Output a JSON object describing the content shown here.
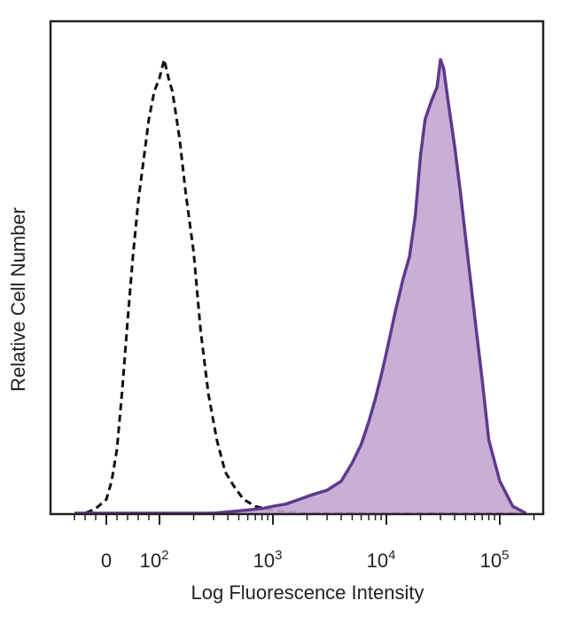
{
  "chart_data": {
    "type": "area",
    "xlabel": "Log Fluorescence Intensity",
    "ylabel": "Relative Cell Number",
    "x_scale": "biexponential",
    "xlim": [
      -80,
      200000
    ],
    "ylim": [
      0,
      1
    ],
    "grid": false,
    "legend": "none",
    "x_ticks": [
      {
        "value": 0,
        "base": "0",
        "exp": ""
      },
      {
        "value": 100,
        "base": "10",
        "exp": "2"
      },
      {
        "value": 1000,
        "base": "10",
        "exp": "3"
      },
      {
        "value": 10000,
        "base": "10",
        "exp": "4"
      },
      {
        "value": 100000,
        "base": "10",
        "exp": "5"
      }
    ],
    "series": [
      {
        "style": "dashed",
        "color": "#111111",
        "fill": "none",
        "x": [
          -60,
          -40,
          -20,
          0,
          10,
          20,
          30,
          40,
          50,
          60,
          70,
          80,
          90,
          100,
          110,
          120,
          130,
          150,
          170,
          200,
          230,
          270,
          320,
          380,
          450,
          550,
          700,
          900,
          1200,
          2000,
          5000,
          20000,
          150000
        ],
        "y": [
          0.0,
          0.0,
          0.01,
          0.03,
          0.07,
          0.14,
          0.27,
          0.42,
          0.56,
          0.68,
          0.77,
          0.86,
          0.92,
          0.95,
          0.99,
          0.95,
          0.92,
          0.82,
          0.7,
          0.57,
          0.4,
          0.26,
          0.16,
          0.09,
          0.06,
          0.03,
          0.015,
          0.008,
          0.004,
          0.0,
          0.0,
          0.0,
          0.0
        ]
      },
      {
        "style": "solid",
        "color": "#5e3a8e",
        "fill": "#c3a6cf",
        "x": [
          -60,
          0,
          100,
          300,
          500,
          800,
          1000,
          1300,
          1700,
          2200,
          3000,
          4000,
          5000,
          6000,
          7000,
          8000,
          9000,
          10000,
          12000,
          14000,
          16000,
          18000,
          20000,
          22000,
          25000,
          28000,
          30000,
          32000,
          35000,
          40000,
          45000,
          50000,
          60000,
          70000,
          80000,
          100000,
          130000,
          170000
        ],
        "y": [
          0.0,
          0.0,
          0.0,
          0.0,
          0.005,
          0.01,
          0.015,
          0.02,
          0.03,
          0.04,
          0.05,
          0.07,
          0.11,
          0.15,
          0.2,
          0.25,
          0.3,
          0.35,
          0.44,
          0.51,
          0.56,
          0.65,
          0.78,
          0.86,
          0.9,
          0.93,
          0.99,
          0.97,
          0.9,
          0.8,
          0.7,
          0.6,
          0.43,
          0.29,
          0.16,
          0.07,
          0.015,
          0.0
        ]
      }
    ]
  }
}
